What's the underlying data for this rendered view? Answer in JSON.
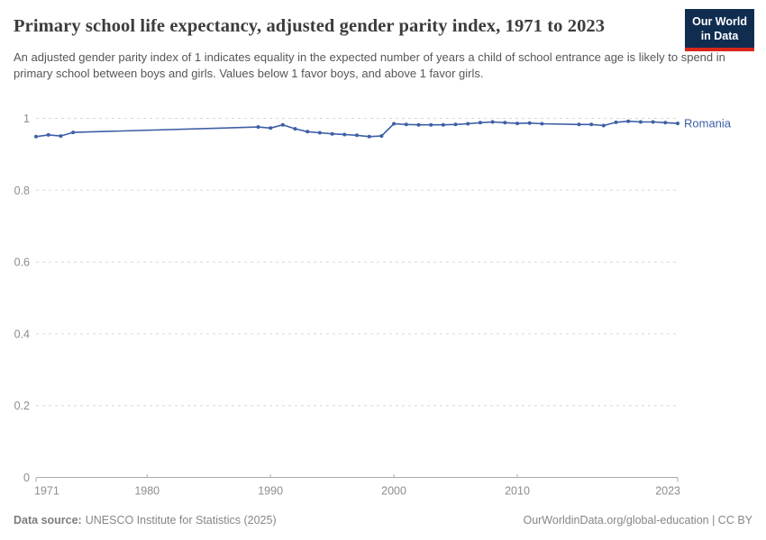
{
  "header": {
    "title": "Primary school life expectancy, adjusted gender parity index, 1971 to 2023",
    "subtitle": "An adjusted gender parity index of 1 indicates equality in the expected number of years a child of school entrance age is likely to spend in primary school between boys and girls. Values below 1 favor boys, and above 1 favor girls.",
    "logo": {
      "line1": "Our World",
      "line2": "in Data"
    }
  },
  "chart_data": {
    "type": "line",
    "title": "Primary school life expectancy, adjusted gender parity index, 1971 to 2023",
    "xlabel": "",
    "ylabel": "",
    "xlim": [
      1971,
      2023
    ],
    "ylim": [
      0,
      1
    ],
    "x_ticks": [
      1971,
      1980,
      1990,
      2000,
      2010,
      2023
    ],
    "y_ticks": [
      0,
      0.2,
      0.4,
      0.6,
      0.8,
      1
    ],
    "grid": "horizontal-dashed",
    "legend_position": "end-of-line",
    "series": [
      {
        "name": "Romania",
        "color": "#3d5fa5",
        "points": [
          [
            1971,
            0.949
          ],
          [
            1972,
            0.954
          ],
          [
            1973,
            0.951
          ],
          [
            1974,
            0.961
          ],
          [
            1989,
            0.976
          ],
          [
            1990,
            0.973
          ],
          [
            1991,
            0.982
          ],
          [
            1992,
            0.971
          ],
          [
            1993,
            0.963
          ],
          [
            1994,
            0.96
          ],
          [
            1995,
            0.957
          ],
          [
            1996,
            0.955
          ],
          [
            1997,
            0.953
          ],
          [
            1998,
            0.949
          ],
          [
            1999,
            0.951
          ],
          [
            2000,
            0.985
          ],
          [
            2001,
            0.983
          ],
          [
            2002,
            0.982
          ],
          [
            2003,
            0.982
          ],
          [
            2004,
            0.982
          ],
          [
            2005,
            0.983
          ],
          [
            2006,
            0.985
          ],
          [
            2007,
            0.988
          ],
          [
            2008,
            0.99
          ],
          [
            2009,
            0.988
          ],
          [
            2010,
            0.986
          ],
          [
            2011,
            0.987
          ],
          [
            2012,
            0.985
          ],
          [
            2015,
            0.983
          ],
          [
            2016,
            0.983
          ],
          [
            2017,
            0.98
          ],
          [
            2018,
            0.989
          ],
          [
            2019,
            0.992
          ],
          [
            2020,
            0.99
          ],
          [
            2021,
            0.99
          ],
          [
            2022,
            0.988
          ],
          [
            2023,
            0.986
          ]
        ]
      }
    ]
  },
  "footer": {
    "source_label": "Data source:",
    "source_text": "UNESCO Institute for Statistics (2025)",
    "rights": "OurWorldinData.org/global-education | CC BY"
  },
  "colors": {
    "line": "#3d5fa5",
    "grid": "#d7d7d7",
    "axis": "#a9a9a9",
    "tick_text": "#8d8d8d",
    "title_text": "#3c3c3c",
    "logo_bg": "#102d50",
    "logo_stripe": "#d8261c"
  }
}
